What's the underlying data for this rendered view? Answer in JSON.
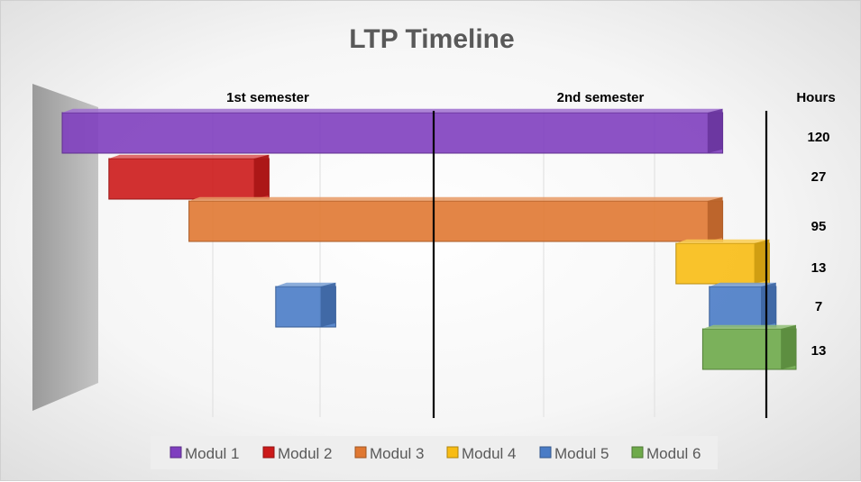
{
  "chart_data": {
    "type": "bar",
    "orientation": "horizontal",
    "style": "3d-floating-gantt",
    "title": "LTP Timeline",
    "column_labels": [
      "1st semester",
      "2nd semester"
    ],
    "hours_header": "Hours",
    "hours": [
      "120",
      "27",
      "95",
      "13",
      "7",
      "13"
    ],
    "x_range": [
      0,
      1
    ],
    "grid": true,
    "legend_position": "bottom",
    "series": [
      {
        "name": "Modul 1",
        "color": "#7F3FBF",
        "segments": [
          [
            0.0,
            0.99
          ]
        ]
      },
      {
        "name": "Modul 2",
        "color": "#CC1A1A",
        "segments": [
          [
            0.07,
            0.31
          ]
        ]
      },
      {
        "name": "Modul 3",
        "color": "#E07832",
        "segments": [
          [
            0.19,
            0.99
          ]
        ]
      },
      {
        "name": "Modul 4",
        "color": "#F8BC14",
        "segments": [
          [
            0.92,
            1.06
          ]
        ]
      },
      {
        "name": "Modul 5",
        "color": "#4A7CC6",
        "segments": [
          [
            0.32,
            0.41
          ],
          [
            0.97,
            1.07
          ]
        ]
      },
      {
        "name": "Modul 6",
        "color": "#6EAA4A",
        "segments": [
          [
            0.96,
            1.1
          ]
        ]
      }
    ]
  }
}
